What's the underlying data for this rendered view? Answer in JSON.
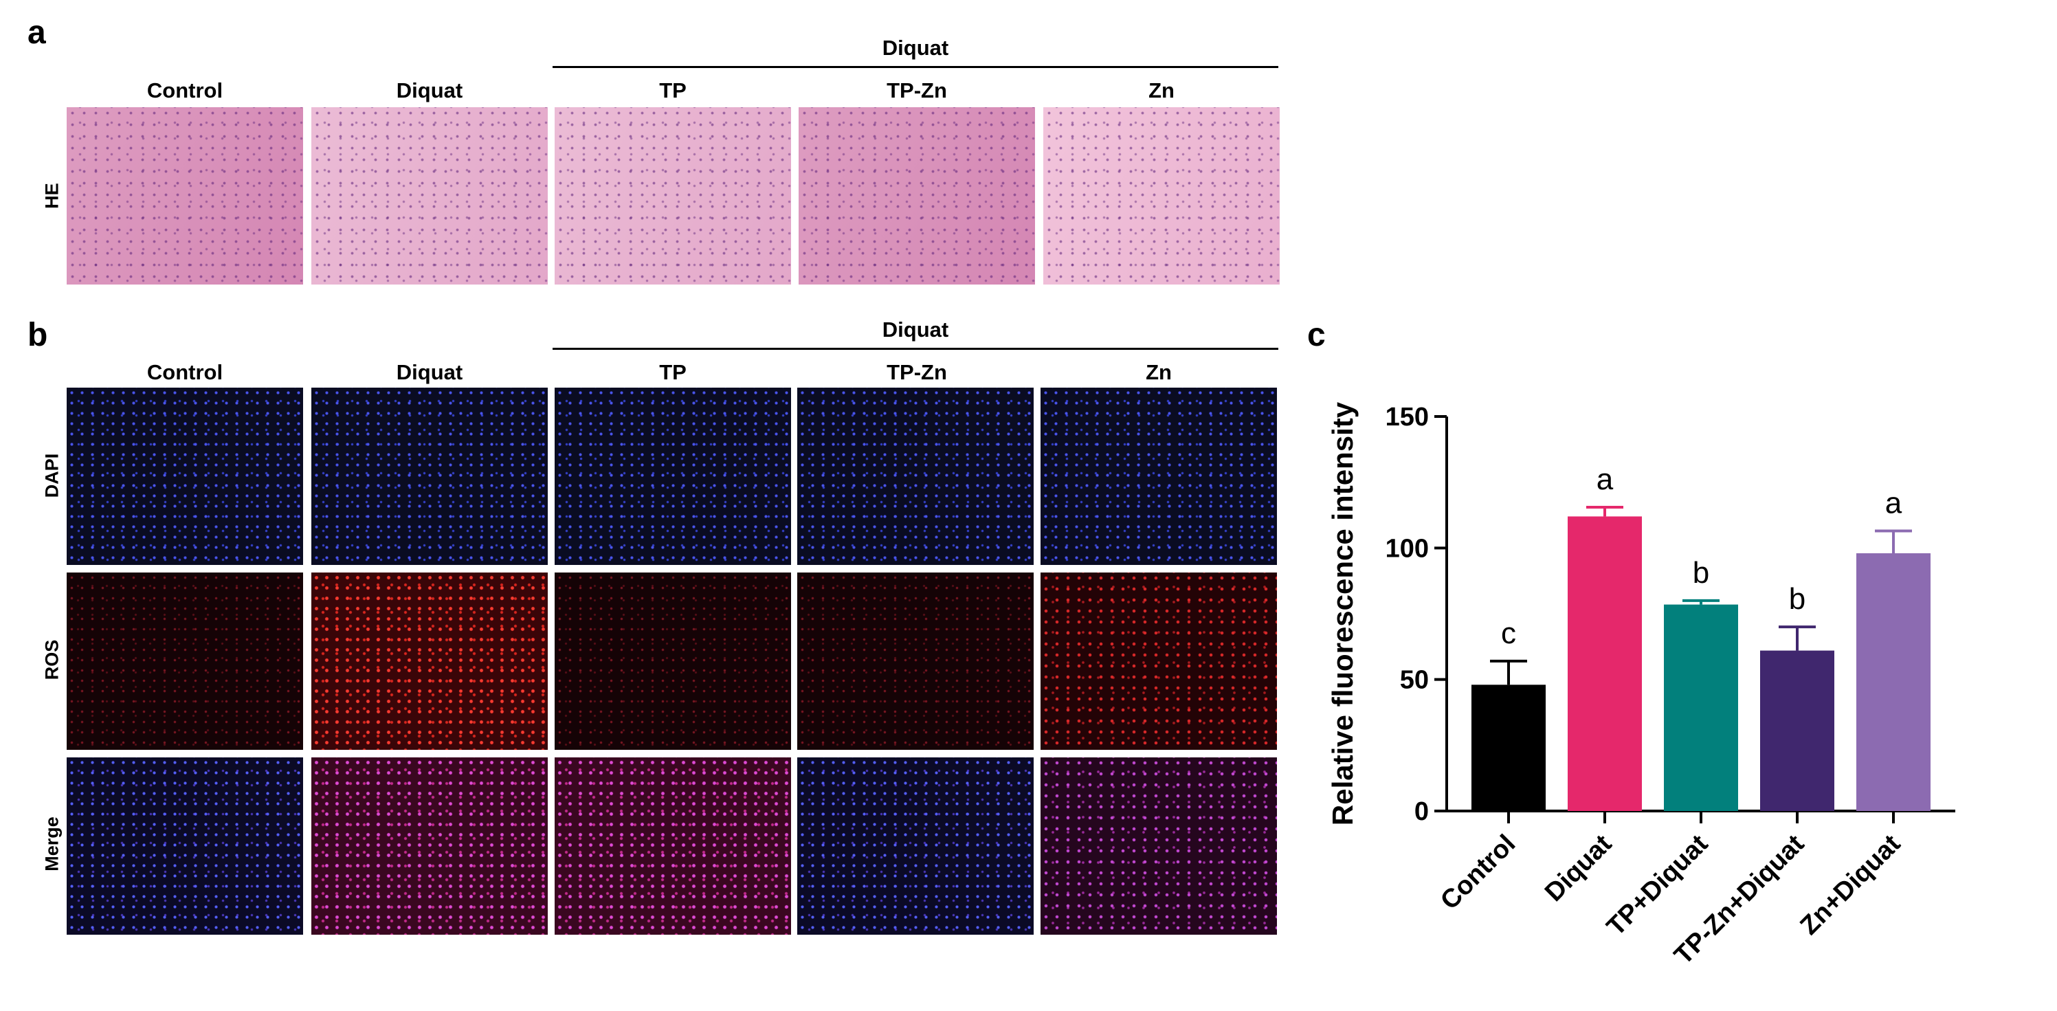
{
  "panel_a": {
    "letter": "a",
    "group_label": "Diquat",
    "columns": [
      "Control",
      "Diquat",
      "TP",
      "TP-Zn",
      "Zn"
    ],
    "rows": [
      "HE"
    ]
  },
  "panel_b": {
    "letter": "b",
    "group_label": "Diquat",
    "columns": [
      "Control",
      "Diquat",
      "TP",
      "TP-Zn",
      "Zn"
    ],
    "rows": [
      "DAPI",
      "ROS",
      "Merge"
    ]
  },
  "panel_c": {
    "letter": "c"
  },
  "colors": {
    "Control": "#000000",
    "Diquat": "#e5286b",
    "TP+Diquat": "#02807c",
    "TP-Zn+Diquat": "#40276e",
    "Zn+Diquat": "#8c6bb1"
  },
  "chart_data": {
    "type": "bar",
    "categories": [
      "Control",
      "Diquat",
      "TP+Diquat",
      "TP-Zn+Diquat",
      "Zn+Diquat"
    ],
    "values": [
      48,
      112,
      78.5,
      61,
      98
    ],
    "errors": [
      9,
      3.5,
      1.5,
      9,
      8.5
    ],
    "significance": [
      "c",
      "a",
      "b",
      "b",
      "a"
    ],
    "ylabel": "Relative fluorescence intensity",
    "xlabel": "",
    "ylim": [
      0,
      150
    ],
    "yticks": [
      0,
      50,
      100,
      150
    ],
    "grid": false,
    "legend": "none"
  }
}
